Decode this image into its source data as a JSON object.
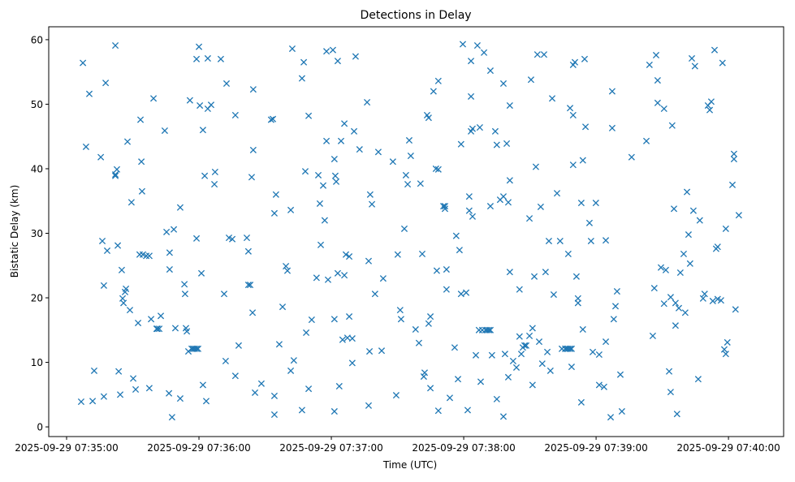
{
  "chart_data": {
    "type": "scatter",
    "title": "Detections in Delay",
    "xlabel": "Time (UTC)",
    "ylabel": "Bistatic Delay (km)",
    "x_unit": "seconds after 2025-09-29 07:35:00",
    "xlim": [
      -8.1,
      325
    ],
    "ylim": [
      -1.5,
      62
    ],
    "grid": false,
    "marker": "x",
    "color": "#1f77b4",
    "x_ticks": [
      {
        "value": 0,
        "label": "2025-09-29 07:35:00"
      },
      {
        "value": 60,
        "label": "2025-09-29 07:36:00"
      },
      {
        "value": 120,
        "label": "2025-09-29 07:37:00"
      },
      {
        "value": 180,
        "label": "2025-09-29 07:38:00"
      },
      {
        "value": 240,
        "label": "2025-09-29 07:39:00"
      },
      {
        "value": 300,
        "label": "2025-09-29 07:40:00"
      }
    ],
    "y_ticks": [
      {
        "value": 0,
        "label": "0"
      },
      {
        "value": 10,
        "label": "10"
      },
      {
        "value": 20,
        "label": "20"
      },
      {
        "value": 30,
        "label": "30"
      },
      {
        "value": 40,
        "label": "40"
      },
      {
        "value": 50,
        "label": "50"
      },
      {
        "value": 60,
        "label": "60"
      }
    ],
    "points": [
      [
        6.6,
        3.9
      ],
      [
        7.4,
        56.4
      ],
      [
        8.8,
        43.4
      ],
      [
        10.3,
        51.6
      ],
      [
        11.8,
        4.0
      ],
      [
        12.5,
        8.7
      ],
      [
        15.5,
        41.8
      ],
      [
        16.2,
        28.8
      ],
      [
        16.9,
        4.7
      ],
      [
        16.9,
        21.9
      ],
      [
        17.7,
        53.3
      ],
      [
        18.4,
        27.3
      ],
      [
        22.1,
        59.1
      ],
      [
        22.1,
        39.1
      ],
      [
        22.1,
        38.9
      ],
      [
        22.8,
        39.9
      ],
      [
        23.2,
        28.1
      ],
      [
        23.6,
        8.6
      ],
      [
        24.3,
        5.0
      ],
      [
        25.0,
        24.3
      ],
      [
        25.4,
        19.9
      ],
      [
        25.8,
        19.2
      ],
      [
        26.5,
        20.9
      ],
      [
        26.9,
        21.4
      ],
      [
        27.6,
        44.2
      ],
      [
        28.7,
        18.1
      ],
      [
        29.4,
        34.8
      ],
      [
        30.2,
        7.5
      ],
      [
        31.3,
        5.8
      ],
      [
        32.4,
        16.1
      ],
      [
        33.1,
        26.7
      ],
      [
        33.5,
        47.6
      ],
      [
        33.9,
        41.1
      ],
      [
        34.2,
        36.5
      ],
      [
        34.6,
        26.7
      ],
      [
        36.1,
        26.5
      ],
      [
        37.5,
        26.5
      ],
      [
        37.5,
        6.0
      ],
      [
        38.3,
        16.7
      ],
      [
        39.4,
        50.9
      ],
      [
        40.8,
        15.2
      ],
      [
        41.2,
        15.2
      ],
      [
        42.0,
        15.2
      ],
      [
        42.7,
        17.2
      ],
      [
        44.5,
        45.9
      ],
      [
        45.3,
        30.2
      ],
      [
        46.4,
        5.2
      ],
      [
        46.7,
        24.4
      ],
      [
        46.7,
        27.0
      ],
      [
        47.8,
        1.5
      ],
      [
        48.6,
        30.6
      ],
      [
        49.3,
        15.3
      ],
      [
        51.5,
        34.0
      ],
      [
        51.5,
        4.4
      ],
      [
        53.4,
        22.1
      ],
      [
        53.7,
        20.6
      ],
      [
        54.1,
        15.3
      ],
      [
        54.5,
        14.8
      ],
      [
        55.2,
        11.7
      ],
      [
        55.9,
        50.6
      ],
      [
        56.7,
        12.1
      ],
      [
        57.4,
        12.1
      ],
      [
        58.1,
        12.1
      ],
      [
        58.9,
        12.1
      ],
      [
        59.6,
        12.1
      ],
      [
        58.9,
        29.2
      ],
      [
        58.9,
        57.0
      ],
      [
        60.0,
        58.9
      ],
      [
        60.4,
        49.8
      ],
      [
        61.1,
        23.8
      ],
      [
        61.8,
        46.0
      ],
      [
        61.8,
        6.5
      ],
      [
        62.6,
        38.9
      ],
      [
        63.3,
        4.0
      ],
      [
        64.0,
        57.1
      ],
      [
        64.0,
        49.3
      ],
      [
        65.5,
        49.9
      ],
      [
        67.0,
        37.6
      ],
      [
        67.3,
        39.5
      ],
      [
        69.9,
        57.0
      ],
      [
        71.4,
        20.6
      ],
      [
        72.1,
        10.2
      ],
      [
        72.5,
        53.2
      ],
      [
        73.6,
        29.3
      ],
      [
        75.1,
        29.1
      ],
      [
        76.5,
        48.3
      ],
      [
        76.5,
        7.9
      ],
      [
        78.0,
        12.6
      ],
      [
        81.7,
        29.3
      ],
      [
        82.4,
        27.2
      ],
      [
        82.4,
        22.0
      ],
      [
        83.2,
        22.0
      ],
      [
        83.9,
        38.7
      ],
      [
        84.3,
        17.7
      ],
      [
        84.6,
        52.3
      ],
      [
        84.6,
        42.9
      ],
      [
        85.4,
        5.3
      ],
      [
        88.3,
        6.7
      ],
      [
        92.7,
        47.6
      ],
      [
        93.5,
        47.7
      ],
      [
        94.2,
        1.9
      ],
      [
        94.2,
        4.8
      ],
      [
        94.2,
        33.1
      ],
      [
        94.9,
        36.0
      ],
      [
        96.4,
        12.8
      ],
      [
        97.9,
        18.6
      ],
      [
        99.4,
        24.9
      ],
      [
        100.1,
        24.2
      ],
      [
        101.6,
        33.6
      ],
      [
        101.6,
        8.7
      ],
      [
        102.3,
        58.6
      ],
      [
        103.0,
        10.3
      ],
      [
        106.7,
        54.0
      ],
      [
        107.5,
        56.5
      ],
      [
        106.7,
        2.6
      ],
      [
        108.2,
        39.6
      ],
      [
        108.6,
        14.6
      ],
      [
        109.7,
        48.2
      ],
      [
        109.7,
        5.9
      ],
      [
        111.1,
        16.6
      ],
      [
        113.3,
        23.1
      ],
      [
        114.1,
        39.0
      ],
      [
        114.8,
        34.6
      ],
      [
        115.2,
        28.2
      ],
      [
        116.3,
        37.4
      ],
      [
        117.0,
        32.0
      ],
      [
        117.8,
        44.3
      ],
      [
        117.8,
        58.2
      ],
      [
        118.5,
        22.8
      ],
      [
        120.7,
        58.4
      ],
      [
        121.8,
        38.9
      ],
      [
        122.2,
        38.0
      ],
      [
        121.4,
        41.5
      ],
      [
        121.4,
        2.4
      ],
      [
        121.4,
        16.7
      ],
      [
        122.9,
        56.7
      ],
      [
        122.9,
        23.8
      ],
      [
        123.6,
        6.3
      ],
      [
        124.4,
        44.3
      ],
      [
        125.1,
        13.5
      ],
      [
        125.9,
        23.5
      ],
      [
        125.9,
        47.0
      ],
      [
        126.6,
        26.7
      ],
      [
        127.3,
        13.8
      ],
      [
        128.1,
        26.4
      ],
      [
        128.1,
        17.1
      ],
      [
        129.5,
        13.7
      ],
      [
        129.5,
        9.9
      ],
      [
        130.3,
        45.8
      ],
      [
        131.0,
        57.4
      ],
      [
        132.8,
        43.0
      ],
      [
        136.2,
        50.3
      ],
      [
        136.9,
        3.3
      ],
      [
        136.9,
        25.7
      ],
      [
        137.3,
        11.7
      ],
      [
        137.6,
        36.0
      ],
      [
        138.4,
        34.5
      ],
      [
        139.8,
        20.6
      ],
      [
        141.3,
        42.6
      ],
      [
        142.8,
        11.8
      ],
      [
        143.5,
        23.0
      ],
      [
        147.9,
        41.1
      ],
      [
        149.4,
        4.9
      ],
      [
        150.1,
        26.7
      ],
      [
        151.2,
        18.1
      ],
      [
        151.6,
        16.7
      ],
      [
        153.1,
        30.7
      ],
      [
        153.8,
        39.0
      ],
      [
        154.6,
        37.6
      ],
      [
        155.3,
        44.4
      ],
      [
        156.0,
        42.0
      ],
      [
        158.2,
        15.1
      ],
      [
        159.7,
        13.0
      ],
      [
        160.4,
        37.7
      ],
      [
        161.2,
        26.8
      ],
      [
        161.9,
        7.8
      ],
      [
        162.3,
        8.4
      ],
      [
        163.4,
        48.3
      ],
      [
        164.1,
        47.9
      ],
      [
        164.1,
        16.0
      ],
      [
        164.9,
        17.1
      ],
      [
        164.9,
        6.0
      ],
      [
        166.3,
        52.0
      ],
      [
        167.4,
        40.0
      ],
      [
        167.8,
        24.2
      ],
      [
        168.5,
        53.6
      ],
      [
        168.5,
        39.9
      ],
      [
        170.8,
        34.2
      ],
      [
        171.5,
        34.2
      ],
      [
        171.5,
        33.8
      ],
      [
        172.2,
        21.3
      ],
      [
        172.2,
        24.4
      ],
      [
        173.7,
        4.5
      ],
      [
        168.5,
        2.5
      ],
      [
        175.9,
        12.3
      ],
      [
        176.6,
        29.6
      ],
      [
        177.4,
        7.4
      ],
      [
        178.1,
        27.4
      ],
      [
        178.8,
        43.8
      ],
      [
        178.8,
        20.6
      ],
      [
        179.6,
        59.3
      ],
      [
        181.1,
        20.8
      ],
      [
        181.8,
        2.6
      ],
      [
        182.5,
        33.5
      ],
      [
        183.3,
        56.7
      ],
      [
        183.3,
        51.2
      ],
      [
        183.3,
        45.8
      ],
      [
        182.5,
        35.7
      ],
      [
        184.0,
        32.6
      ],
      [
        184.0,
        46.2
      ],
      [
        185.5,
        11.1
      ],
      [
        186.2,
        59.1
      ],
      [
        186.9,
        15.0
      ],
      [
        187.3,
        46.4
      ],
      [
        187.7,
        7.0
      ],
      [
        188.4,
        15.0
      ],
      [
        189.2,
        58.0
      ],
      [
        189.9,
        15.0
      ],
      [
        190.6,
        15.0
      ],
      [
        191.4,
        15.0
      ],
      [
        192.1,
        15.0
      ],
      [
        192.1,
        55.2
      ],
      [
        192.1,
        34.2
      ],
      [
        192.8,
        11.1
      ],
      [
        194.3,
        45.8
      ],
      [
        195.0,
        4.3
      ],
      [
        195.0,
        43.7
      ],
      [
        196.5,
        35.2
      ],
      [
        198.0,
        35.7
      ],
      [
        198.0,
        53.2
      ],
      [
        198.0,
        1.6
      ],
      [
        198.7,
        11.3
      ],
      [
        199.5,
        43.9
      ],
      [
        200.2,
        34.8
      ],
      [
        200.2,
        7.7
      ],
      [
        200.9,
        49.8
      ],
      [
        200.9,
        24.0
      ],
      [
        200.9,
        38.2
      ],
      [
        202.4,
        10.2
      ],
      [
        203.9,
        9.2
      ],
      [
        205.3,
        14.0
      ],
      [
        205.3,
        21.3
      ],
      [
        206.1,
        11.3
      ],
      [
        206.8,
        12.3
      ],
      [
        207.6,
        12.6
      ],
      [
        208.3,
        12.6
      ],
      [
        209.8,
        32.3
      ],
      [
        209.8,
        14.1
      ],
      [
        210.5,
        53.8
      ],
      [
        211.2,
        15.3
      ],
      [
        211.2,
        6.5
      ],
      [
        212.0,
        23.3
      ],
      [
        212.7,
        40.3
      ],
      [
        213.4,
        57.7
      ],
      [
        214.2,
        13.2
      ],
      [
        214.9,
        34.1
      ],
      [
        216.4,
        57.7
      ],
      [
        215.6,
        9.8
      ],
      [
        217.1,
        24.0
      ],
      [
        217.9,
        11.6
      ],
      [
        218.6,
        28.8
      ],
      [
        219.3,
        8.7
      ],
      [
        220.1,
        50.9
      ],
      [
        220.8,
        20.5
      ],
      [
        222.3,
        36.2
      ],
      [
        223.7,
        28.8
      ],
      [
        224.5,
        12.1
      ],
      [
        226.0,
        12.1
      ],
      [
        226.7,
        12.1
      ],
      [
        227.4,
        12.1
      ],
      [
        228.2,
        49.4
      ],
      [
        227.4,
        26.8
      ],
      [
        228.2,
        12.1
      ],
      [
        228.9,
        12.1
      ],
      [
        228.9,
        9.3
      ],
      [
        229.6,
        48.3
      ],
      [
        229.6,
        40.6
      ],
      [
        229.6,
        56.1
      ],
      [
        230.4,
        56.5
      ],
      [
        231.1,
        23.3
      ],
      [
        231.8,
        19.9
      ],
      [
        231.8,
        19.2
      ],
      [
        233.3,
        3.8
      ],
      [
        233.3,
        34.7
      ],
      [
        234.0,
        15.1
      ],
      [
        234.0,
        41.3
      ],
      [
        234.8,
        57.0
      ],
      [
        235.2,
        46.5
      ],
      [
        237.0,
        31.6
      ],
      [
        237.7,
        28.8
      ],
      [
        238.5,
        11.6
      ],
      [
        239.9,
        34.7
      ],
      [
        241.4,
        11.2
      ],
      [
        241.4,
        6.5
      ],
      [
        243.6,
        6.2
      ],
      [
        244.4,
        28.9
      ],
      [
        244.4,
        13.2
      ],
      [
        246.6,
        1.5
      ],
      [
        247.3,
        52.0
      ],
      [
        247.3,
        46.3
      ],
      [
        248.0,
        16.7
      ],
      [
        248.8,
        18.7
      ],
      [
        249.5,
        21.0
      ],
      [
        251.0,
        8.1
      ],
      [
        251.7,
        2.4
      ],
      [
        256.1,
        41.8
      ],
      [
        262.8,
        44.3
      ],
      [
        264.2,
        56.1
      ],
      [
        265.7,
        14.1
      ],
      [
        266.4,
        21.5
      ],
      [
        267.2,
        57.6
      ],
      [
        267.9,
        53.7
      ],
      [
        267.9,
        50.2
      ],
      [
        269.4,
        24.7
      ],
      [
        270.8,
        49.3
      ],
      [
        270.8,
        19.1
      ],
      [
        271.6,
        24.3
      ],
      [
        273.1,
        8.6
      ],
      [
        273.8,
        5.4
      ],
      [
        273.8,
        20.1
      ],
      [
        274.5,
        46.7
      ],
      [
        275.3,
        33.8
      ],
      [
        276.0,
        19.2
      ],
      [
        276.0,
        15.7
      ],
      [
        276.7,
        2.0
      ],
      [
        277.5,
        18.4
      ],
      [
        278.2,
        23.9
      ],
      [
        279.7,
        26.8
      ],
      [
        280.4,
        17.7
      ],
      [
        281.2,
        36.4
      ],
      [
        281.9,
        29.8
      ],
      [
        282.6,
        25.3
      ],
      [
        283.4,
        57.1
      ],
      [
        284.1,
        33.5
      ],
      [
        284.8,
        55.9
      ],
      [
        286.3,
        7.4
      ],
      [
        287.0,
        32.0
      ],
      [
        288.5,
        19.9
      ],
      [
        289.2,
        20.6
      ],
      [
        290.7,
        49.8
      ],
      [
        291.5,
        49.1
      ],
      [
        292.2,
        50.4
      ],
      [
        292.9,
        19.5
      ],
      [
        293.7,
        58.4
      ],
      [
        294.4,
        27.6
      ],
      [
        295.1,
        27.9
      ],
      [
        295.1,
        19.8
      ],
      [
        296.6,
        19.6
      ],
      [
        297.3,
        56.4
      ],
      [
        298.1,
        12.0
      ],
      [
        298.8,
        11.3
      ],
      [
        298.8,
        30.7
      ],
      [
        299.5,
        13.1
      ],
      [
        301.8,
        37.5
      ],
      [
        302.5,
        41.5
      ],
      [
        302.5,
        42.3
      ],
      [
        303.2,
        18.2
      ],
      [
        304.7,
        32.8
      ]
    ]
  }
}
